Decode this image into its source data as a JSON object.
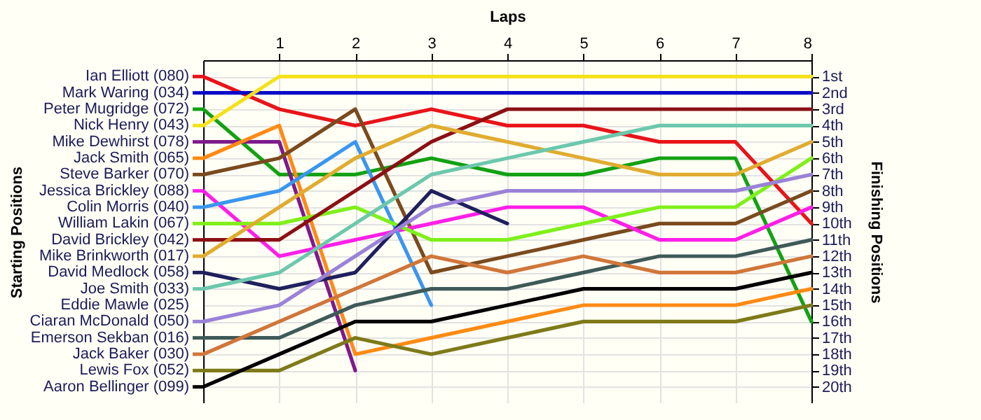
{
  "chart_data": {
    "type": "line",
    "xlabel": "Laps",
    "legend_title": "Starting Positions",
    "y2label": "Finishing Positions",
    "legend": "left",
    "x": [
      0,
      1,
      2,
      3,
      4,
      5,
      6,
      7,
      8
    ],
    "xlim": [
      0,
      8
    ],
    "xticks": [
      1,
      2,
      3,
      4,
      5,
      6,
      7,
      8
    ],
    "y2lim": [
      21,
      0
    ],
    "y2ticks": [
      {
        "value": 1,
        "label": "1st"
      },
      {
        "value": 2,
        "label": "2nd"
      },
      {
        "value": 3,
        "label": "3rd"
      },
      {
        "value": 4,
        "label": "4th"
      },
      {
        "value": 5,
        "label": "5th"
      },
      {
        "value": 6,
        "label": "6th"
      },
      {
        "value": 7,
        "label": "7th"
      },
      {
        "value": 8,
        "label": "8th"
      },
      {
        "value": 9,
        "label": "9th"
      },
      {
        "value": 10,
        "label": "10th"
      },
      {
        "value": 11,
        "label": "11th"
      },
      {
        "value": 12,
        "label": "12th"
      },
      {
        "value": 13,
        "label": "13th"
      },
      {
        "value": 14,
        "label": "14th"
      },
      {
        "value": 15,
        "label": "15th"
      },
      {
        "value": 16,
        "label": "16th"
      },
      {
        "value": 17,
        "label": "17th"
      },
      {
        "value": 18,
        "label": "18th"
      },
      {
        "value": 19,
        "label": "19th"
      },
      {
        "value": 20,
        "label": "20th"
      }
    ],
    "grid": true,
    "marker": "none",
    "line_style": "solid",
    "series": [
      {
        "name": "Ian Elliott (080)",
        "axis": "y2",
        "color": "#e8141a",
        "values": [
          1,
          3,
          4,
          3,
          4,
          4,
          5,
          5,
          10
        ]
      },
      {
        "name": "Mark Waring (034)",
        "axis": "y2",
        "color": "#0a0ac8",
        "values": [
          2,
          2,
          2,
          2,
          2,
          2,
          2,
          2,
          2
        ]
      },
      {
        "name": "Peter Mugridge (072)",
        "axis": "y2",
        "color": "#13a113",
        "values": [
          3,
          7,
          7,
          6,
          7,
          7,
          6,
          6,
          16
        ]
      },
      {
        "name": "Nick Henry (043)",
        "axis": "y2",
        "color": "#f5e11a",
        "values": [
          4,
          1,
          1,
          1,
          1,
          1,
          1,
          1,
          1
        ]
      },
      {
        "name": "Mike Dewhirst (078)",
        "axis": "y2",
        "color": "#7d1a8c",
        "values": [
          5,
          5,
          19,
          null,
          null,
          null,
          null,
          null,
          null
        ]
      },
      {
        "name": "Jack Smith (065)",
        "axis": "y2",
        "color": "#ff8a14",
        "values": [
          6,
          4,
          18,
          17,
          16,
          15,
          15,
          15,
          14
        ]
      },
      {
        "name": "Steve Barker (070)",
        "axis": "y2",
        "color": "#7a4a1e",
        "values": [
          7,
          6,
          3,
          13,
          12,
          11,
          10,
          10,
          8
        ]
      },
      {
        "name": "Jessica Brickley (088)",
        "axis": "y2",
        "color": "#ff1ee8",
        "values": [
          8,
          12,
          11,
          10,
          9,
          9,
          11,
          11,
          9
        ]
      },
      {
        "name": "Colin Morris (040)",
        "axis": "y2",
        "color": "#3a96ee",
        "values": [
          9,
          8,
          5,
          15,
          null,
          null,
          null,
          null,
          null
        ]
      },
      {
        "name": "William Lakin (067)",
        "axis": "y2",
        "color": "#7ff01a",
        "values": [
          10,
          10,
          9,
          11,
          11,
          10,
          9,
          9,
          6
        ]
      },
      {
        "name": "David Brickley (042)",
        "axis": "y2",
        "color": "#8c0f14",
        "values": [
          11,
          11,
          8,
          5,
          3,
          3,
          3,
          3,
          3
        ]
      },
      {
        "name": "Mike Brinkworth (017)",
        "axis": "y2",
        "color": "#e0ac30",
        "values": [
          12,
          9,
          6,
          4,
          5,
          6,
          7,
          7,
          5
        ]
      },
      {
        "name": "David Medlock (058)",
        "axis": "y2",
        "color": "#20205e",
        "values": [
          13,
          14,
          13,
          8,
          10,
          null,
          null,
          null,
          null
        ]
      },
      {
        "name": "Joe Smith (033)",
        "axis": "y2",
        "color": "#6cc8ac",
        "values": [
          14,
          13,
          10,
          7,
          6,
          5,
          4,
          4,
          4
        ]
      },
      {
        "name": "Eddie Mawle (025)",
        "axis": "y2",
        "color": "#ffffff",
        "values": [
          null,
          null,
          null,
          null,
          null,
          null,
          null,
          null,
          null
        ]
      },
      {
        "name": "Ciaran McDonald (050)",
        "axis": "y2",
        "color": "#9a82d8",
        "values": [
          16,
          15,
          12,
          9,
          8,
          8,
          8,
          8,
          7
        ]
      },
      {
        "name": "Emerson Sekban (016)",
        "axis": "y2",
        "color": "#3e5a58",
        "values": [
          17,
          17,
          15,
          14,
          14,
          13,
          12,
          12,
          11
        ]
      },
      {
        "name": "Jack Baker (030)",
        "axis": "y2",
        "color": "#d0763a",
        "values": [
          18,
          16,
          14,
          12,
          13,
          12,
          13,
          13,
          12
        ]
      },
      {
        "name": "Lewis Fox (052)",
        "axis": "y2",
        "color": "#7e7a1a",
        "values": [
          19,
          19,
          17,
          18,
          17,
          16,
          16,
          16,
          15
        ]
      },
      {
        "name": "Aaron Bellinger (099)",
        "axis": "y2",
        "color": "#000000",
        "values": [
          20,
          18,
          16,
          16,
          15,
          14,
          14,
          14,
          13
        ]
      }
    ]
  }
}
